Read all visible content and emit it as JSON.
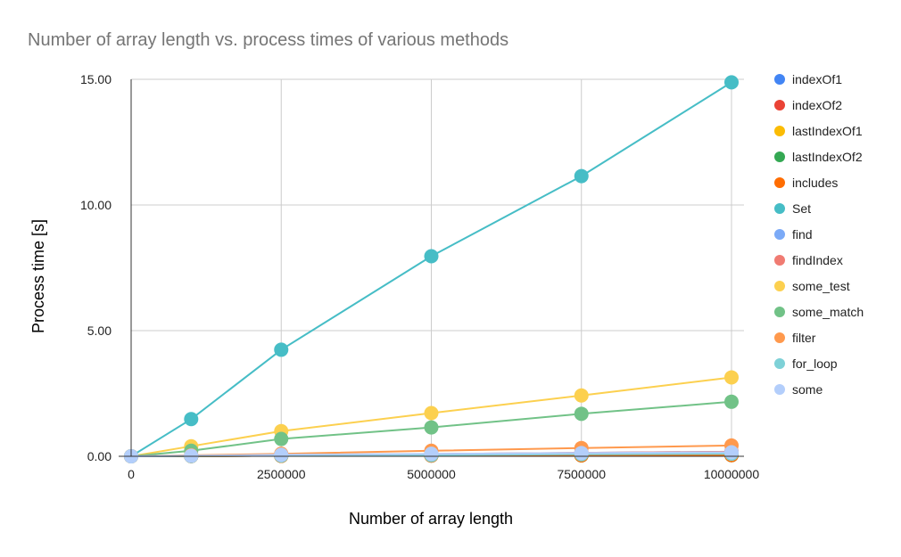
{
  "chart_data": {
    "type": "line",
    "title": "Number of array length vs. process times of various methods",
    "xlabel": "Number of array length",
    "ylabel": "Process time [s]",
    "x": [
      0,
      1000000,
      2500000,
      5000000,
      7500000,
      10000000
    ],
    "x_ticks": [
      "0",
      "2500000",
      "5000000",
      "7500000",
      "10000000"
    ],
    "x_tick_values": [
      0,
      2500000,
      5000000,
      7500000,
      10000000
    ],
    "y_ticks": [
      "0.00",
      "5.00",
      "10.00",
      "15.00"
    ],
    "y_tick_values": [
      0,
      5,
      10,
      15
    ],
    "xlim": [
      0,
      10000000
    ],
    "ylim": [
      0,
      15
    ],
    "grid": true,
    "legend_position": "right",
    "series": [
      {
        "name": "indexOf1",
        "color": "#4285f4",
        "values": [
          0,
          0.01,
          0.02,
          0.03,
          0.04,
          0.05
        ]
      },
      {
        "name": "indexOf2",
        "color": "#ea4335",
        "values": [
          0,
          0.01,
          0.02,
          0.03,
          0.04,
          0.05
        ]
      },
      {
        "name": "lastIndexOf1",
        "color": "#fbbc04",
        "values": [
          0,
          0.01,
          0.02,
          0.03,
          0.04,
          0.05
        ]
      },
      {
        "name": "lastIndexOf2",
        "color": "#34a853",
        "values": [
          0,
          0.01,
          0.02,
          0.03,
          0.04,
          0.05
        ]
      },
      {
        "name": "includes",
        "color": "#ff6d01",
        "values": [
          0,
          0.01,
          0.02,
          0.03,
          0.04,
          0.05
        ]
      },
      {
        "name": "Set",
        "color": "#46bdc6",
        "values": [
          0,
          1.48,
          4.24,
          7.96,
          11.15,
          14.88
        ]
      },
      {
        "name": "find",
        "color": "#7baaf7",
        "values": [
          0,
          0.02,
          0.05,
          0.09,
          0.14,
          0.18
        ]
      },
      {
        "name": "findIndex",
        "color": "#f07b72",
        "values": [
          0,
          0.02,
          0.05,
          0.09,
          0.14,
          0.18
        ]
      },
      {
        "name": "some_test",
        "color": "#fcd04f",
        "values": [
          0,
          0.4,
          1.0,
          1.72,
          2.42,
          3.14
        ]
      },
      {
        "name": "some_match",
        "color": "#71c287",
        "values": [
          0,
          0.22,
          0.69,
          1.15,
          1.69,
          2.17
        ]
      },
      {
        "name": "filter",
        "color": "#ff994d",
        "values": [
          0,
          0.04,
          0.1,
          0.22,
          0.33,
          0.43
        ]
      },
      {
        "name": "for_loop",
        "color": "#7ed1d7",
        "values": [
          0,
          0.01,
          0.03,
          0.05,
          0.08,
          0.1
        ]
      },
      {
        "name": "some",
        "color": "#b3cefb",
        "values": [
          0,
          0.02,
          0.06,
          0.1,
          0.13,
          0.16
        ]
      }
    ]
  }
}
